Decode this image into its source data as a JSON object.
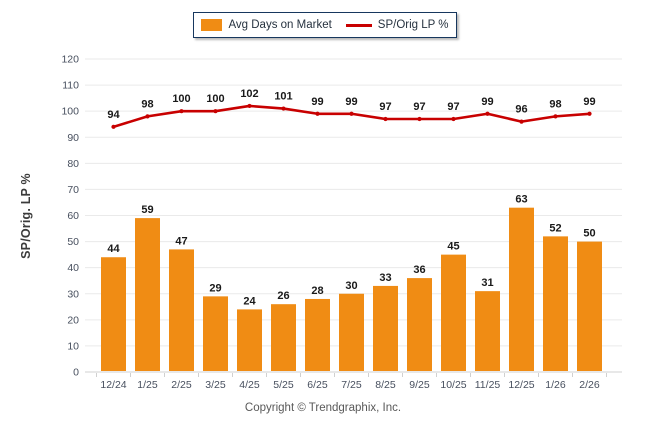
{
  "legend": {
    "items": [
      {
        "label": "Avg Days on Market",
        "swatch": "bar-swatch-icon",
        "color": "#F08C14"
      },
      {
        "label": "SP/Orig LP %",
        "swatch": "line-swatch-icon",
        "color": "#C80000"
      }
    ]
  },
  "footer": {
    "copyright": "Copyright © Trendgraphix, Inc."
  },
  "colors": {
    "bar": "#F08C14",
    "line": "#C80000",
    "grid": "#EAEAEA",
    "axis": "#D0D0D0",
    "tick_label": "#474F5E",
    "data_label": "#1A1A1A"
  },
  "chart_data": {
    "type": "bar",
    "categories": [
      "12/24",
      "1/25",
      "2/25",
      "3/25",
      "4/25",
      "5/25",
      "6/25",
      "7/25",
      "8/25",
      "9/25",
      "10/25",
      "11/25",
      "12/25",
      "1/26",
      "2/26"
    ],
    "series": [
      {
        "name": "Avg Days on Market",
        "type": "bar",
        "color": "#F08C14",
        "values": [
          44,
          59,
          47,
          29,
          24,
          26,
          28,
          30,
          33,
          36,
          45,
          31,
          63,
          52,
          50
        ]
      },
      {
        "name": "SP/Orig LP %",
        "type": "line",
        "color": "#C80000",
        "values": [
          94,
          98,
          100,
          100,
          102,
          101,
          99,
          99,
          97,
          97,
          97,
          99,
          96,
          98,
          99
        ]
      }
    ],
    "title": "",
    "xlabel": "",
    "ylabel": "SP/Orig. LP %",
    "ylim": [
      0,
      120
    ],
    "y_ticks": [
      0,
      10,
      20,
      30,
      40,
      50,
      60,
      70,
      80,
      90,
      100,
      110,
      120
    ],
    "grid": true,
    "legend_position": "top",
    "data_labels": true
  }
}
